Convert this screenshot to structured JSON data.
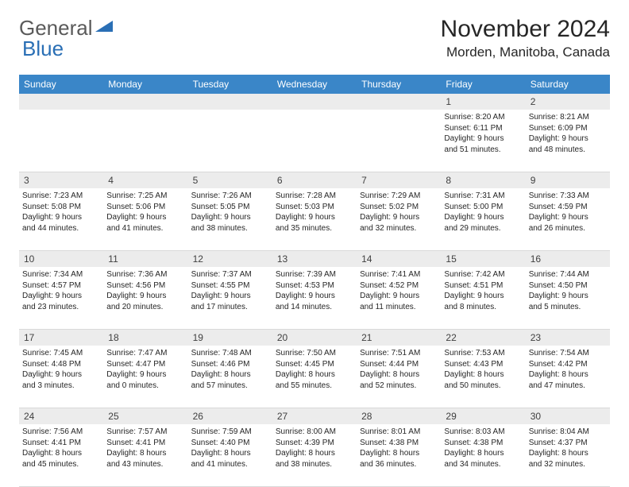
{
  "logo": {
    "general": "General",
    "blue": "Blue"
  },
  "title": {
    "month": "November 2024",
    "location": "Morden, Manitoba, Canada"
  },
  "colors": {
    "header_bg": "#3a86c8",
    "header_text": "#ffffff",
    "daynum_bg": "#ececec",
    "text": "#262626",
    "border": "#d9d9d9",
    "logo_gray": "#5a5a5a",
    "logo_blue": "#2a6fb5"
  },
  "day_headers": [
    "Sunday",
    "Monday",
    "Tuesday",
    "Wednesday",
    "Thursday",
    "Friday",
    "Saturday"
  ],
  "weeks": [
    {
      "nums": [
        "",
        "",
        "",
        "",
        "",
        "1",
        "2"
      ],
      "cells": [
        {},
        {},
        {},
        {},
        {},
        {
          "sunrise": "Sunrise: 8:20 AM",
          "sunset": "Sunset: 6:11 PM",
          "day1": "Daylight: 9 hours",
          "day2": "and 51 minutes."
        },
        {
          "sunrise": "Sunrise: 8:21 AM",
          "sunset": "Sunset: 6:09 PM",
          "day1": "Daylight: 9 hours",
          "day2": "and 48 minutes."
        }
      ]
    },
    {
      "nums": [
        "3",
        "4",
        "5",
        "6",
        "7",
        "8",
        "9"
      ],
      "cells": [
        {
          "sunrise": "Sunrise: 7:23 AM",
          "sunset": "Sunset: 5:08 PM",
          "day1": "Daylight: 9 hours",
          "day2": "and 44 minutes."
        },
        {
          "sunrise": "Sunrise: 7:25 AM",
          "sunset": "Sunset: 5:06 PM",
          "day1": "Daylight: 9 hours",
          "day2": "and 41 minutes."
        },
        {
          "sunrise": "Sunrise: 7:26 AM",
          "sunset": "Sunset: 5:05 PM",
          "day1": "Daylight: 9 hours",
          "day2": "and 38 minutes."
        },
        {
          "sunrise": "Sunrise: 7:28 AM",
          "sunset": "Sunset: 5:03 PM",
          "day1": "Daylight: 9 hours",
          "day2": "and 35 minutes."
        },
        {
          "sunrise": "Sunrise: 7:29 AM",
          "sunset": "Sunset: 5:02 PM",
          "day1": "Daylight: 9 hours",
          "day2": "and 32 minutes."
        },
        {
          "sunrise": "Sunrise: 7:31 AM",
          "sunset": "Sunset: 5:00 PM",
          "day1": "Daylight: 9 hours",
          "day2": "and 29 minutes."
        },
        {
          "sunrise": "Sunrise: 7:33 AM",
          "sunset": "Sunset: 4:59 PM",
          "day1": "Daylight: 9 hours",
          "day2": "and 26 minutes."
        }
      ]
    },
    {
      "nums": [
        "10",
        "11",
        "12",
        "13",
        "14",
        "15",
        "16"
      ],
      "cells": [
        {
          "sunrise": "Sunrise: 7:34 AM",
          "sunset": "Sunset: 4:57 PM",
          "day1": "Daylight: 9 hours",
          "day2": "and 23 minutes."
        },
        {
          "sunrise": "Sunrise: 7:36 AM",
          "sunset": "Sunset: 4:56 PM",
          "day1": "Daylight: 9 hours",
          "day2": "and 20 minutes."
        },
        {
          "sunrise": "Sunrise: 7:37 AM",
          "sunset": "Sunset: 4:55 PM",
          "day1": "Daylight: 9 hours",
          "day2": "and 17 minutes."
        },
        {
          "sunrise": "Sunrise: 7:39 AM",
          "sunset": "Sunset: 4:53 PM",
          "day1": "Daylight: 9 hours",
          "day2": "and 14 minutes."
        },
        {
          "sunrise": "Sunrise: 7:41 AM",
          "sunset": "Sunset: 4:52 PM",
          "day1": "Daylight: 9 hours",
          "day2": "and 11 minutes."
        },
        {
          "sunrise": "Sunrise: 7:42 AM",
          "sunset": "Sunset: 4:51 PM",
          "day1": "Daylight: 9 hours",
          "day2": "and 8 minutes."
        },
        {
          "sunrise": "Sunrise: 7:44 AM",
          "sunset": "Sunset: 4:50 PM",
          "day1": "Daylight: 9 hours",
          "day2": "and 5 minutes."
        }
      ]
    },
    {
      "nums": [
        "17",
        "18",
        "19",
        "20",
        "21",
        "22",
        "23"
      ],
      "cells": [
        {
          "sunrise": "Sunrise: 7:45 AM",
          "sunset": "Sunset: 4:48 PM",
          "day1": "Daylight: 9 hours",
          "day2": "and 3 minutes."
        },
        {
          "sunrise": "Sunrise: 7:47 AM",
          "sunset": "Sunset: 4:47 PM",
          "day1": "Daylight: 9 hours",
          "day2": "and 0 minutes."
        },
        {
          "sunrise": "Sunrise: 7:48 AM",
          "sunset": "Sunset: 4:46 PM",
          "day1": "Daylight: 8 hours",
          "day2": "and 57 minutes."
        },
        {
          "sunrise": "Sunrise: 7:50 AM",
          "sunset": "Sunset: 4:45 PM",
          "day1": "Daylight: 8 hours",
          "day2": "and 55 minutes."
        },
        {
          "sunrise": "Sunrise: 7:51 AM",
          "sunset": "Sunset: 4:44 PM",
          "day1": "Daylight: 8 hours",
          "day2": "and 52 minutes."
        },
        {
          "sunrise": "Sunrise: 7:53 AM",
          "sunset": "Sunset: 4:43 PM",
          "day1": "Daylight: 8 hours",
          "day2": "and 50 minutes."
        },
        {
          "sunrise": "Sunrise: 7:54 AM",
          "sunset": "Sunset: 4:42 PM",
          "day1": "Daylight: 8 hours",
          "day2": "and 47 minutes."
        }
      ]
    },
    {
      "nums": [
        "24",
        "25",
        "26",
        "27",
        "28",
        "29",
        "30"
      ],
      "cells": [
        {
          "sunrise": "Sunrise: 7:56 AM",
          "sunset": "Sunset: 4:41 PM",
          "day1": "Daylight: 8 hours",
          "day2": "and 45 minutes."
        },
        {
          "sunrise": "Sunrise: 7:57 AM",
          "sunset": "Sunset: 4:41 PM",
          "day1": "Daylight: 8 hours",
          "day2": "and 43 minutes."
        },
        {
          "sunrise": "Sunrise: 7:59 AM",
          "sunset": "Sunset: 4:40 PM",
          "day1": "Daylight: 8 hours",
          "day2": "and 41 minutes."
        },
        {
          "sunrise": "Sunrise: 8:00 AM",
          "sunset": "Sunset: 4:39 PM",
          "day1": "Daylight: 8 hours",
          "day2": "and 38 minutes."
        },
        {
          "sunrise": "Sunrise: 8:01 AM",
          "sunset": "Sunset: 4:38 PM",
          "day1": "Daylight: 8 hours",
          "day2": "and 36 minutes."
        },
        {
          "sunrise": "Sunrise: 8:03 AM",
          "sunset": "Sunset: 4:38 PM",
          "day1": "Daylight: 8 hours",
          "day2": "and 34 minutes."
        },
        {
          "sunrise": "Sunrise: 8:04 AM",
          "sunset": "Sunset: 4:37 PM",
          "day1": "Daylight: 8 hours",
          "day2": "and 32 minutes."
        }
      ]
    }
  ]
}
